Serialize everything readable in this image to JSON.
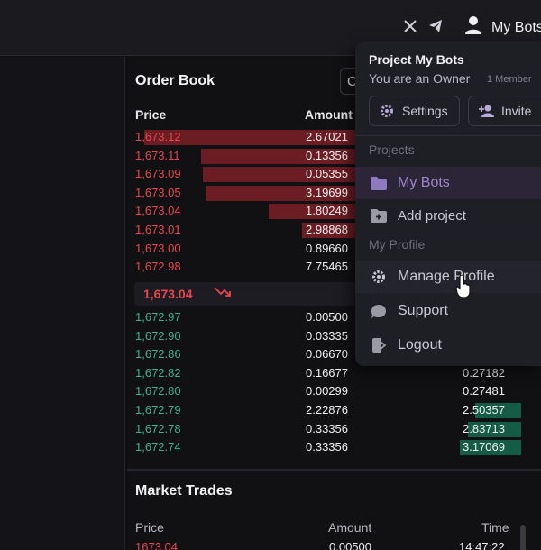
{
  "header": {
    "username": "My Bots",
    "icons": [
      "x-icon",
      "telegram-icon",
      "user-icon"
    ]
  },
  "order_book": {
    "title": "Order Book",
    "toggle_label": "C",
    "col_price": "Price",
    "col_amount": "Amount",
    "asks": [
      {
        "price": "1,673.12",
        "amount": "2.67021",
        "depth": 0.96
      },
      {
        "price": "1,673.11",
        "amount": "0.13356",
        "depth": 0.71
      },
      {
        "price": "1,673.09",
        "amount": "0.05355",
        "depth": 0.7
      },
      {
        "price": "1,673.05",
        "amount": "3.19699",
        "depth": 0.69
      },
      {
        "price": "1,673.04",
        "amount": "1.80249",
        "depth": 0.41
      },
      {
        "price": "1,673.01",
        "amount": "2.98868",
        "depth": 0.26
      },
      {
        "price": "1,673.00",
        "amount": "0.89660",
        "depth": 0
      },
      {
        "price": "1,672.98",
        "amount": "7.75465",
        "depth": 0
      }
    ],
    "last_price": "1,673.04",
    "last_price_trend": "down",
    "bids": [
      {
        "price": "1,672.97",
        "amount": "0.00500",
        "total": "",
        "depth": 0
      },
      {
        "price": "1,672.90",
        "amount": "0.03335",
        "total": "",
        "depth": 0
      },
      {
        "price": "1,672.86",
        "amount": "0.06670",
        "total": "",
        "depth": 0
      },
      {
        "price": "1,672.82",
        "amount": "0.16677",
        "total": "0.27182",
        "depth": 0
      },
      {
        "price": "1,672.80",
        "amount": "0.00299",
        "total": "0.27481",
        "depth": 0
      },
      {
        "price": "1,672.79",
        "amount": "2.22876",
        "total": "2.50357",
        "depth": 0.27
      },
      {
        "price": "1,672.78",
        "amount": "0.33356",
        "total": "2.83713",
        "depth": 0.31
      },
      {
        "price": "1,672.74",
        "amount": "0.33356",
        "total": "3.17069",
        "depth": 0.36
      }
    ]
  },
  "market_trades": {
    "title": "Market Trades",
    "col_price": "Price",
    "col_amount": "Amount",
    "col_time": "Time",
    "rows": [
      {
        "price": "1673.04",
        "amount": "0.00500",
        "time": "14:47:22"
      }
    ]
  },
  "dropdown": {
    "project_title": "Project My Bots",
    "role": "You are an Owner",
    "members": "1 Member",
    "settings_label": "Settings",
    "invite_label": "Invite",
    "projects_section": "Projects",
    "my_bots_label": "My Bots",
    "add_project_label": "Add project",
    "profile_section": "My Profile",
    "manage_profile_label": "Manage Profile",
    "support_label": "Support",
    "logout_label": "Logout"
  },
  "colors": {
    "ask": "#e8454f",
    "bid": "#3fb08c",
    "accent": "#9d86c9"
  }
}
